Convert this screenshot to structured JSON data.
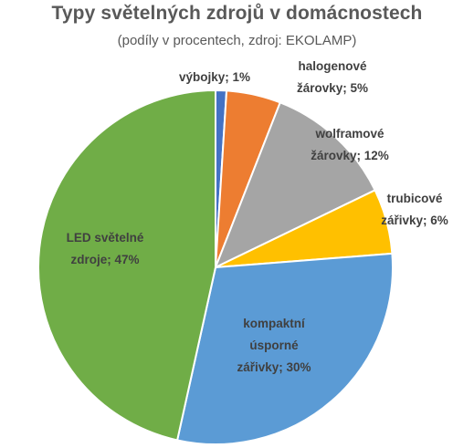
{
  "chart_data": {
    "type": "pie",
    "title": "Typy světelných zdrojů v domácnostech",
    "subtitle": "(podíly v procentech, zdroj: EKOLAMP)",
    "slices": [
      {
        "name": "výbojky",
        "value": 1,
        "color": "#4472C4",
        "label_lines": [
          "výbojky; 1%"
        ]
      },
      {
        "name": "halogenové žárovky",
        "value": 5,
        "color": "#ED7D31",
        "label_lines": [
          "halogenové",
          "žárovky; 5%"
        ]
      },
      {
        "name": "wolframové žárovky",
        "value": 12,
        "color": "#A5A5A5",
        "label_lines": [
          "wolframové",
          "žárovky; 12%"
        ]
      },
      {
        "name": "trubicové zářivky",
        "value": 6,
        "color": "#FFC000",
        "label_lines": [
          "trubicové",
          "zářivky; 6%"
        ]
      },
      {
        "name": "kompaktní úsporné zářivky",
        "value": 30,
        "color": "#5B9BD5",
        "label_lines": [
          "kompaktní",
          "úsporné",
          "zářivky; 30%"
        ]
      },
      {
        "name": "LED světelné zdroje",
        "value": 47,
        "color": "#70AD47",
        "label_lines": [
          "LED světelné",
          "zdroje; 47%"
        ]
      }
    ],
    "start_angle_deg": 0,
    "direction": "clockwise",
    "legend": "none"
  }
}
